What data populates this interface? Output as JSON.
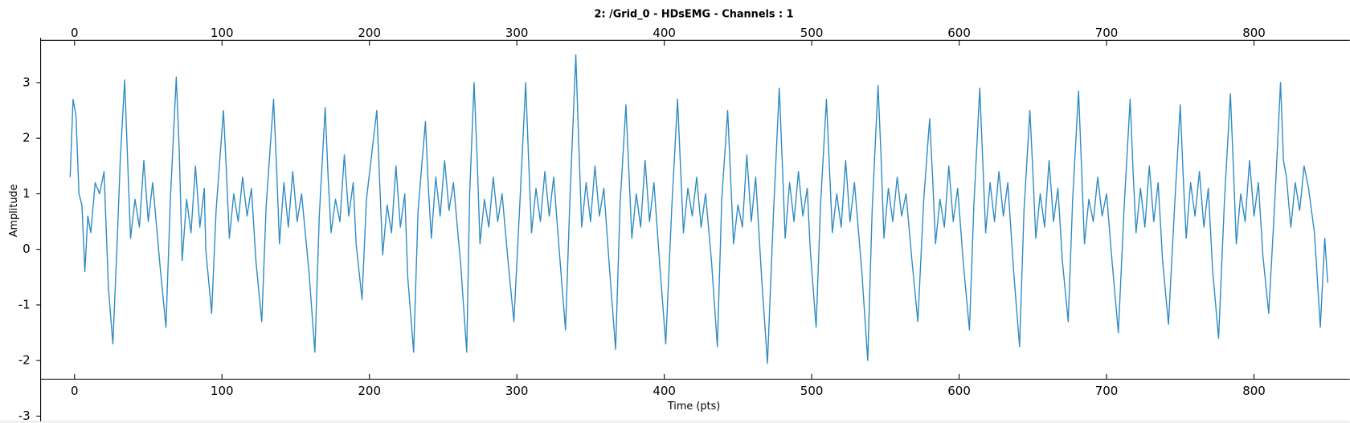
{
  "chart_data": {
    "type": "line",
    "title": "2: /Grid_0 - HDsEMG - Channels : 1",
    "x_label": "Time (pts)",
    "y_label": "Amplitude",
    "xlim": [
      -23,
      865
    ],
    "ylim": [
      -3,
      3.76
    ],
    "xticks": [
      0,
      100,
      200,
      300,
      400,
      500,
      600,
      700,
      800
    ],
    "yticks": [
      -3,
      -2,
      -1,
      0,
      1,
      2,
      3
    ],
    "x": [
      -3,
      -1,
      1,
      3,
      5,
      7,
      9,
      11,
      14,
      17,
      20,
      23,
      26,
      29,
      31,
      34,
      36,
      38,
      41,
      44,
      47,
      50,
      53,
      58,
      62,
      65,
      69,
      71,
      73,
      76,
      79,
      82,
      85,
      88,
      89,
      93,
      96,
      101,
      103,
      105,
      108,
      111,
      114,
      117,
      120,
      123,
      127,
      130,
      135,
      137,
      139,
      142,
      145,
      148,
      151,
      154,
      159,
      163,
      166,
      170,
      172,
      174,
      177,
      180,
      183,
      186,
      189,
      191,
      195,
      198,
      205,
      207,
      209,
      212,
      215,
      218,
      221,
      224,
      226,
      230,
      233,
      238,
      240,
      242,
      245,
      248,
      251,
      254,
      257,
      262,
      266,
      268,
      271,
      273,
      275,
      278,
      281,
      284,
      287,
      290,
      294,
      298,
      302,
      306,
      308,
      310,
      313,
      316,
      319,
      322,
      325,
      329,
      333,
      336,
      340,
      342,
      344,
      347,
      350,
      353,
      356,
      359,
      363,
      367,
      370,
      374,
      376,
      378,
      381,
      384,
      387,
      390,
      393,
      397,
      401,
      405,
      409,
      411,
      413,
      416,
      419,
      422,
      425,
      428,
      432,
      436,
      439,
      443,
      445,
      447,
      450,
      453,
      456,
      459,
      462,
      466,
      470,
      474,
      478,
      480,
      482,
      485,
      488,
      491,
      494,
      497,
      499,
      503,
      506,
      510,
      512,
      514,
      517,
      520,
      523,
      526,
      529,
      534,
      538,
      541,
      545,
      547,
      549,
      552,
      555,
      558,
      561,
      564,
      568,
      572,
      576,
      580,
      582,
      584,
      587,
      590,
      593,
      596,
      599,
      603,
      607,
      610,
      614,
      616,
      618,
      621,
      624,
      627,
      630,
      633,
      637,
      641,
      644,
      648,
      650,
      652,
      655,
      658,
      661,
      664,
      667,
      670,
      674,
      677,
      681,
      683,
      685,
      688,
      691,
      694,
      697,
      700,
      704,
      708,
      712,
      716,
      718,
      720,
      723,
      726,
      729,
      732,
      735,
      738,
      742,
      746,
      750,
      752,
      754,
      757,
      760,
      763,
      766,
      769,
      772,
      776,
      780,
      784,
      786,
      788,
      791,
      794,
      797,
      800,
      803,
      806,
      810,
      814,
      818,
      820,
      822,
      825,
      828,
      831,
      834,
      837,
      841,
      845,
      848,
      850
    ],
    "series": [
      {
        "color": "#2f8bc3",
        "values": [
          1.3,
          2.7,
          2.4,
          1.0,
          0.8,
          -0.4,
          0.6,
          0.3,
          1.2,
          1.0,
          1.4,
          -0.7,
          -1.7,
          0.2,
          1.6,
          3.05,
          1.6,
          0.2,
          0.9,
          0.4,
          1.6,
          0.5,
          1.2,
          -0.3,
          -1.4,
          0.9,
          3.1,
          1.8,
          -0.2,
          0.9,
          0.3,
          1.5,
          0.4,
          1.1,
          0.0,
          -1.15,
          0.7,
          2.5,
          1.4,
          0.2,
          1.0,
          0.5,
          1.3,
          0.6,
          1.1,
          -0.2,
          -1.3,
          0.8,
          2.7,
          1.5,
          0.1,
          1.2,
          0.4,
          1.4,
          0.5,
          1.0,
          -0.4,
          -1.85,
          0.6,
          2.55,
          1.3,
          0.3,
          0.9,
          0.5,
          1.7,
          0.6,
          1.2,
          0.1,
          -0.9,
          0.9,
          2.5,
          1.2,
          -0.1,
          0.8,
          0.3,
          1.5,
          0.4,
          1.0,
          -0.5,
          -1.85,
          0.7,
          2.3,
          1.1,
          0.2,
          1.3,
          0.6,
          1.6,
          0.7,
          1.2,
          -0.3,
          -1.85,
          1.0,
          3.0,
          1.7,
          0.1,
          0.9,
          0.4,
          1.3,
          0.5,
          1.0,
          -0.2,
          -1.3,
          0.8,
          3.0,
          1.6,
          0.3,
          1.1,
          0.5,
          1.4,
          0.6,
          1.3,
          -0.1,
          -1.45,
          0.9,
          3.5,
          1.9,
          0.4,
          1.2,
          0.5,
          1.5,
          0.6,
          1.1,
          -0.4,
          -1.8,
          0.8,
          2.6,
          1.4,
          0.2,
          1.0,
          0.4,
          1.6,
          0.5,
          1.2,
          -0.3,
          -1.7,
          0.7,
          2.7,
          1.5,
          0.3,
          1.1,
          0.6,
          1.3,
          0.4,
          1.0,
          -0.2,
          -1.75,
          0.9,
          2.5,
          1.3,
          0.1,
          0.8,
          0.4,
          1.7,
          0.5,
          1.3,
          -0.5,
          -2.05,
          0.6,
          2.9,
          1.6,
          0.2,
          1.2,
          0.5,
          1.4,
          0.6,
          1.1,
          0.0,
          -1.4,
          0.8,
          2.7,
          1.5,
          0.3,
          1.0,
          0.4,
          1.6,
          0.5,
          1.2,
          -0.4,
          -2.0,
          0.7,
          2.95,
          1.7,
          0.2,
          1.1,
          0.5,
          1.3,
          0.6,
          1.0,
          -0.2,
          -1.3,
          0.9,
          2.35,
          1.3,
          0.1,
          0.9,
          0.4,
          1.5,
          0.5,
          1.1,
          -0.3,
          -1.45,
          0.8,
          2.9,
          1.6,
          0.3,
          1.2,
          0.5,
          1.4,
          0.6,
          1.2,
          -0.4,
          -1.75,
          0.7,
          2.5,
          1.4,
          0.2,
          1.0,
          0.4,
          1.6,
          0.5,
          1.1,
          -0.2,
          -1.3,
          0.9,
          2.85,
          1.5,
          0.1,
          0.9,
          0.5,
          1.3,
          0.6,
          1.0,
          -0.3,
          -1.5,
          0.8,
          2.7,
          1.4,
          0.3,
          1.1,
          0.4,
          1.5,
          0.5,
          1.2,
          -0.2,
          -1.35,
          0.7,
          2.6,
          1.3,
          0.2,
          1.2,
          0.6,
          1.4,
          0.4,
          1.1,
          -0.4,
          -1.6,
          0.9,
          2.8,
          1.5,
          0.1,
          1.0,
          0.5,
          1.6,
          0.6,
          1.2,
          -0.1,
          -1.15,
          0.8,
          3.0,
          1.6,
          1.3,
          0.4,
          1.2,
          0.7,
          1.5,
          1.1,
          0.3,
          -1.4,
          0.2,
          -0.6
        ]
      }
    ]
  }
}
